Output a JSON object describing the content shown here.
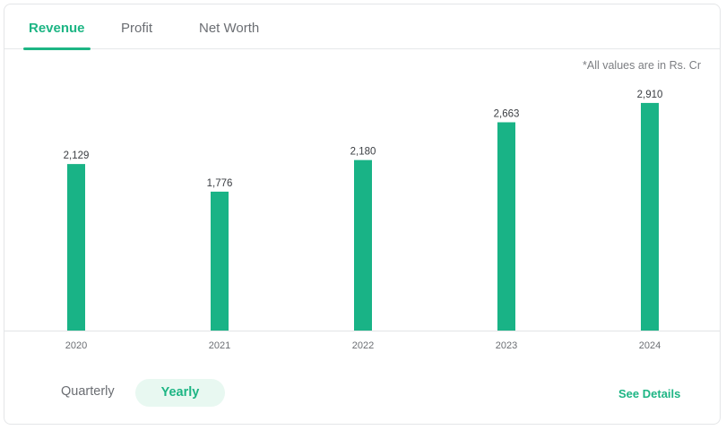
{
  "tabs": [
    {
      "label": "Revenue",
      "active": true
    },
    {
      "label": "Profit",
      "active": false
    },
    {
      "label": "Net Worth",
      "active": false
    }
  ],
  "note": "*All values are in Rs. Cr",
  "colors": {
    "accent": "#1db584",
    "bar": "#19b386",
    "axis": "#e2e4e6"
  },
  "chart_data": {
    "type": "bar",
    "categories": [
      "2020",
      "2021",
      "2022",
      "2023",
      "2024"
    ],
    "values": [
      2129,
      1776,
      2180,
      2663,
      2910
    ],
    "value_labels": [
      "2,129",
      "1,776",
      "2,180",
      "2,663",
      "2,910"
    ],
    "title": "",
    "xlabel": "",
    "ylabel": "",
    "ylim": [
      0,
      3200
    ],
    "grid": false
  },
  "period_toggle": {
    "quarterly": "Quarterly",
    "yearly": "Yearly",
    "selected": "Yearly"
  },
  "see_details": "See Details"
}
